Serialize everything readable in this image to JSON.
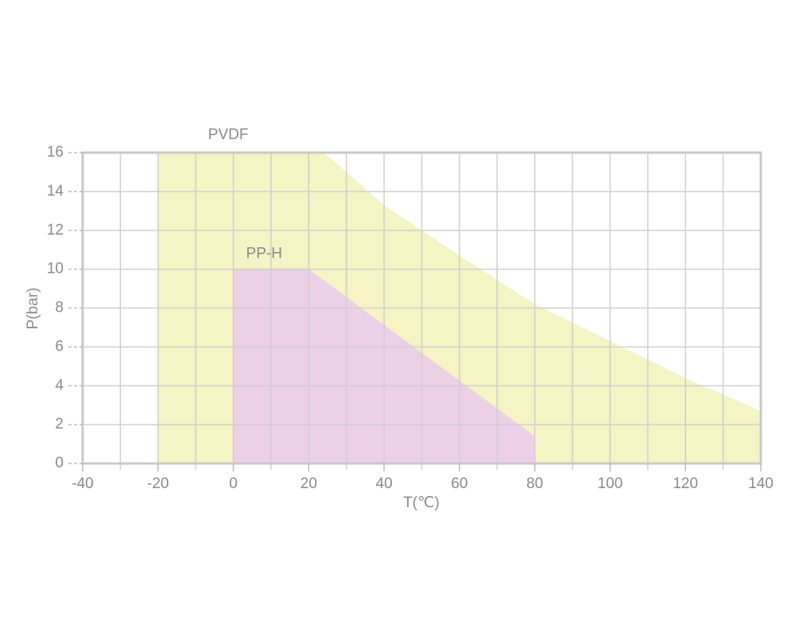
{
  "chart_data": {
    "type": "area",
    "x_label": "T(℃)",
    "y_label": "P(bar)",
    "series": [
      {
        "name": "PVDF",
        "color": "#f4f4c4",
        "x": [
          -20,
          24,
          40,
          60,
          80,
          100,
          120,
          140
        ],
        "values": [
          16,
          16,
          13.3,
          10.7,
          8.2,
          6.3,
          4.4,
          2.7
        ]
      },
      {
        "name": "PP-H",
        "color": "#ecd0e6",
        "x": [
          0,
          20,
          80
        ],
        "values": [
          10,
          10,
          1.4
        ]
      }
    ],
    "xlim": [
      -40,
      140
    ],
    "xticks": [
      -40,
      -20,
      0,
      20,
      40,
      60,
      80,
      100,
      120,
      140
    ],
    "xminor_ticks": [
      -30,
      -10,
      10,
      30,
      50,
      70,
      90,
      110,
      130
    ],
    "ylim": [
      0,
      16
    ],
    "yticks": [
      0,
      2,
      4,
      6,
      8,
      10,
      12,
      14,
      16
    ],
    "grid": true
  }
}
